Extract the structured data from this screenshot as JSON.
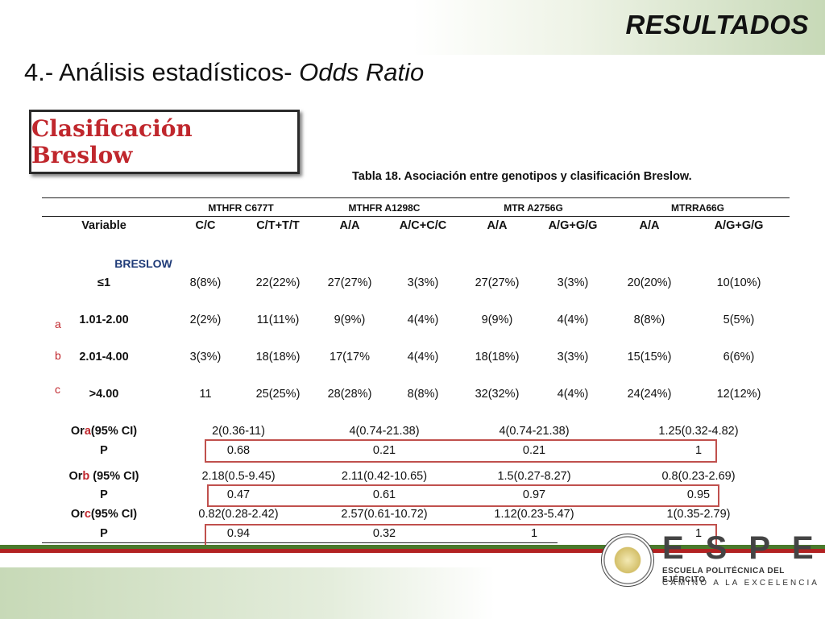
{
  "header": {
    "title": "RESULTADOS",
    "subtitle_plain": "4.- Análisis estadísticos- ",
    "subtitle_italic": "Odds Ratio"
  },
  "box": {
    "label": "Clasificación Breslow"
  },
  "caption": "Tabla 18. Asociación entre genotipos y clasificación Breslow.",
  "table": {
    "groups": [
      "MTHFR C677T",
      "MTHFR A1298C",
      "MTR A2756G",
      "MTRRA66G"
    ],
    "headers": [
      "Variable",
      "C/C",
      "C/T+T/T",
      "A/A",
      "A/C+C/C",
      "A/A",
      "A/G+G/G",
      "A/A",
      "A/G+G/G"
    ],
    "section_label": "BRESLOW",
    "rows": [
      {
        "label": "≤1",
        "cells": [
          "8(8%)",
          "22(22%)",
          "27(27%)",
          "3(3%)",
          "27(27%)",
          "3(3%)",
          "20(20%)",
          "10(10%)"
        ]
      },
      {
        "label": "1.01-2.00",
        "cells": [
          "2(2%)",
          "11(11%)",
          "9(9%)",
          "4(4%)",
          "9(9%)",
          "4(4%)",
          "8(8%)",
          "5(5%)"
        ]
      },
      {
        "label": "2.01-4.00",
        "cells": [
          "3(3%)",
          "18(18%)",
          "17(17%",
          "4(4%)",
          "18(18%)",
          "3(3%)",
          "15(15%)",
          "6(6%)"
        ]
      },
      {
        "label": ">4.00",
        "cells": [
          "11",
          "25(25%)",
          "28(28%)",
          "8(8%)",
          "32(32%)",
          "4(4%)",
          "24(24%)",
          "12(12%)"
        ]
      }
    ],
    "side_letters": [
      "a",
      "b",
      "c"
    ],
    "or_blocks": [
      {
        "or_prefix": "Or",
        "or_letter": "a",
        "or_suffix": "(95% CI)",
        "or_values": [
          "2(0.36-11)",
          "4(0.74-21.38)",
          "4(0.74-21.38)",
          "1.25(0.32-4.82)"
        ],
        "p_label": "P",
        "p_values": [
          "0.68",
          "0.21",
          "0.21",
          "1"
        ]
      },
      {
        "or_prefix": "Or",
        "or_letter": "b",
        "or_suffix": " (95% CI)",
        "or_values": [
          "2.18(0.5-9.45)",
          "2.11(0.42-10.65)",
          "1.5(0.27-8.27)",
          "0.8(0.23-2.69)"
        ],
        "p_label": "P",
        "p_values": [
          "0.47",
          "0.61",
          "0.97",
          "0.95"
        ]
      },
      {
        "or_prefix": "Or",
        "or_letter": "c",
        "or_suffix": "(95% CI)",
        "or_values": [
          "0.82(0.28-2.42)",
          "2.57(0.61-10.72)",
          "1.12(0.23-5.47)",
          "1(0.35-2.79)"
        ],
        "p_label": "P",
        "p_values": [
          "0.94",
          "0.32",
          "1",
          "1"
        ]
      }
    ]
  },
  "logo": {
    "letters": "ESPE",
    "line1": "ESCUELA POLITÉCNICA DEL EJÉRCITO",
    "line2": "CAMINO A LA EXCELENCIA"
  },
  "colors": {
    "accent_red": "#c0272d",
    "box_red": "#c0504d",
    "band_green": "#c7d9b7",
    "stripe_green": "#4a7a2c",
    "stripe_red": "#b22222"
  }
}
